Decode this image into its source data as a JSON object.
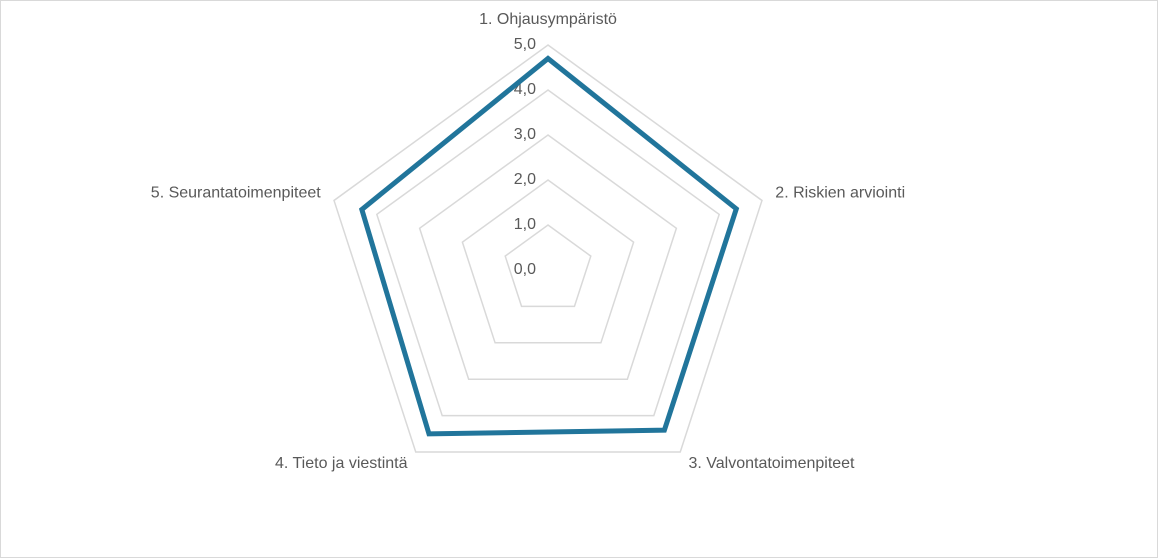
{
  "chart_data": {
    "type": "radar",
    "categories": [
      "1. Ohjausympäristö",
      "2. Riskien arviointi",
      "3. Valvontatoimenpiteet",
      "4. Tieto ja viestintä",
      "5. Seurantatoimenpiteet"
    ],
    "series": [
      {
        "color": "#21759b",
        "values": [
          4.7,
          4.4,
          4.4,
          4.5,
          4.35
        ]
      }
    ],
    "rlim": [
      0,
      5
    ],
    "rticks": [
      {
        "value": 0,
        "label": "0,0"
      },
      {
        "value": 1,
        "label": "1,0"
      },
      {
        "value": 2,
        "label": "2,0"
      },
      {
        "value": 3,
        "label": "3,0"
      },
      {
        "value": 4,
        "label": "4,0"
      },
      {
        "value": 5,
        "label": "5,0"
      }
    ],
    "grid": true
  }
}
